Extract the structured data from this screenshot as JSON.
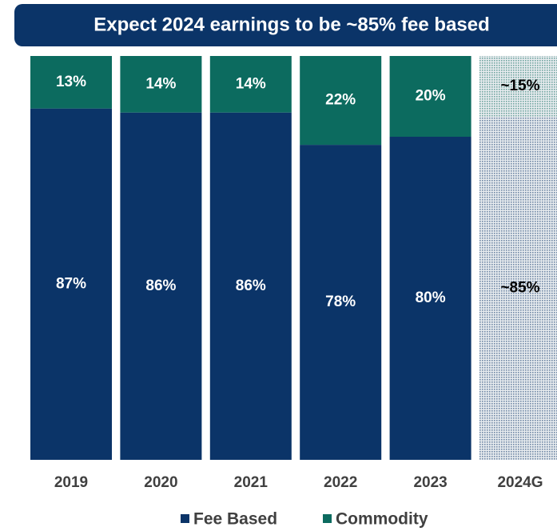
{
  "chart_data": {
    "type": "stacked_bar_100",
    "title": "Expect 2024 earnings to be ~85% fee based",
    "categories": [
      "2019",
      "2020",
      "2021",
      "2022",
      "2023",
      "2024G"
    ],
    "series": [
      {
        "name": "Fee Based",
        "color": "#0b3468",
        "values": [
          87,
          86,
          86,
          78,
          80,
          85
        ],
        "value_labels": [
          "87%",
          "86%",
          "86%",
          "78%",
          "80%",
          "~85%"
        ]
      },
      {
        "name": "Commodity",
        "color": "#0c6b5f",
        "values": [
          13,
          14,
          14,
          22,
          20,
          15
        ],
        "value_labels": [
          "13%",
          "14%",
          "14%",
          "22%",
          "20%",
          "~15%"
        ]
      }
    ],
    "hatched": [
      false,
      false,
      false,
      false,
      false,
      true
    ],
    "ylim": [
      0,
      100
    ]
  }
}
